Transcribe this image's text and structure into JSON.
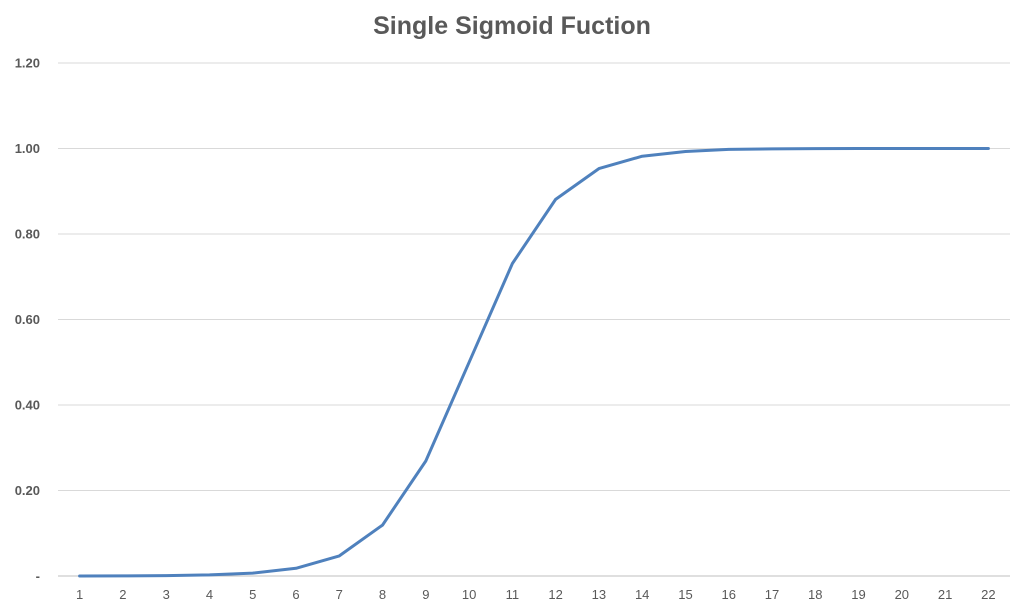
{
  "chart_data": {
    "type": "line",
    "title": "Single Sigmoid Fuction",
    "xlabel": "",
    "ylabel": "",
    "categories": [
      "1",
      "2",
      "3",
      "4",
      "5",
      "6",
      "7",
      "8",
      "9",
      "10",
      "11",
      "12",
      "13",
      "14",
      "15",
      "16",
      "17",
      "18",
      "19",
      "20",
      "21",
      "22"
    ],
    "y_tick_labels": [
      "-",
      "0.20",
      "0.40",
      "0.60",
      "0.80",
      "1.00",
      "1.20"
    ],
    "ylim": [
      0,
      1.2
    ],
    "grid": true,
    "legend": "none",
    "series": [
      {
        "color": "#4f81bd",
        "values": [
          0.0001,
          0.0003,
          0.0009,
          0.0025,
          0.0067,
          0.018,
          0.047,
          0.119,
          0.269,
          0.5,
          0.731,
          0.881,
          0.953,
          0.982,
          0.993,
          0.998,
          0.999,
          0.9997,
          0.9999,
          1.0,
          1.0,
          1.0
        ]
      }
    ]
  }
}
